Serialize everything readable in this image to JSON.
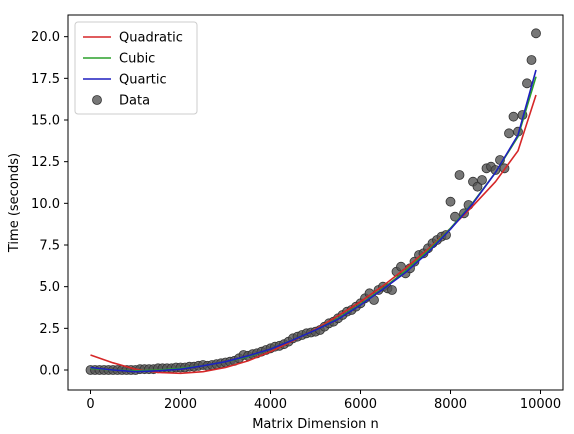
{
  "chart_data": {
    "type": "scatter",
    "title": "",
    "xlabel": "Matrix Dimension n",
    "ylabel": "Time (seconds)",
    "xlim": [
      -500,
      10500
    ],
    "ylim": [
      -1.2,
      21.3
    ],
    "xticks": [
      0,
      2000,
      4000,
      6000,
      8000,
      10000
    ],
    "xtick_labels": [
      "0",
      "2000",
      "4000",
      "6000",
      "8000",
      "10000"
    ],
    "yticks": [
      0.0,
      2.5,
      5.0,
      7.5,
      10.0,
      12.5,
      15.0,
      17.5,
      20.0
    ],
    "ytick_labels": [
      "0.0",
      "2.5",
      "5.0",
      "7.5",
      "10.0",
      "12.5",
      "15.0",
      "17.5",
      "20.0"
    ],
    "grid": false,
    "legend_position": "upper-left",
    "legend": [
      {
        "label": "Quadratic",
        "kind": "line",
        "color": "#d62728"
      },
      {
        "label": "Cubic",
        "kind": "line",
        "color": "#2ca02c"
      },
      {
        "label": "Quartic",
        "kind": "line",
        "color": "#1f1fbf"
      },
      {
        "label": "Data",
        "kind": "marker",
        "color": "#555555"
      }
    ],
    "fits": [
      {
        "name": "Quadratic",
        "color": "#d62728",
        "x": [
          0,
          500,
          1000,
          1500,
          2000,
          2500,
          3000,
          3500,
          4000,
          4500,
          5000,
          5500,
          6000,
          6500,
          7000,
          7500,
          8000,
          8500,
          9000,
          9500,
          9900
        ],
        "y": [
          0.9,
          0.43,
          0.05,
          -0.15,
          -0.2,
          -0.1,
          0.15,
          0.55,
          1.1,
          1.75,
          2.45,
          3.25,
          4.1,
          5.05,
          6.1,
          7.25,
          8.5,
          9.85,
          11.3,
          13.15,
          16.5
        ]
      },
      {
        "name": "Cubic",
        "color": "#2ca02c",
        "x": [
          0,
          500,
          1000,
          1500,
          2000,
          2500,
          3000,
          3500,
          4000,
          4500,
          5000,
          5500,
          6000,
          6500,
          7000,
          7500,
          8000,
          8500,
          9000,
          9500,
          9900
        ],
        "y": [
          0.1,
          0.0,
          -0.05,
          0.0,
          0.1,
          0.25,
          0.5,
          0.8,
          1.25,
          1.8,
          2.4,
          3.1,
          3.95,
          4.9,
          5.95,
          7.15,
          8.5,
          10.05,
          11.85,
          14.0,
          17.6
        ]
      },
      {
        "name": "Quartic",
        "color": "#1f1fbf",
        "x": [
          0,
          500,
          1000,
          1500,
          2000,
          2500,
          3000,
          3500,
          4000,
          4500,
          5000,
          5500,
          6000,
          6500,
          7000,
          7500,
          8000,
          8500,
          9000,
          9500,
          9900
        ],
        "y": [
          0.15,
          0.0,
          -0.1,
          -0.05,
          0.05,
          0.25,
          0.5,
          0.85,
          1.25,
          1.8,
          2.4,
          3.05,
          3.9,
          4.85,
          5.85,
          7.05,
          8.45,
          10.0,
          11.85,
          14.1,
          18.0
        ]
      }
    ],
    "series": [
      {
        "name": "Data",
        "color": "#555555",
        "x": [
          0,
          100,
          200,
          300,
          400,
          500,
          600,
          700,
          800,
          900,
          1000,
          1100,
          1200,
          1300,
          1400,
          1500,
          1600,
          1700,
          1800,
          1900,
          2000,
          2100,
          2200,
          2300,
          2400,
          2500,
          2600,
          2700,
          2800,
          2900,
          3000,
          3100,
          3200,
          3300,
          3400,
          3500,
          3600,
          3700,
          3800,
          3900,
          4000,
          4100,
          4200,
          4300,
          4400,
          4500,
          4600,
          4700,
          4800,
          4900,
          5000,
          5100,
          5200,
          5300,
          5400,
          5500,
          5600,
          5700,
          5800,
          5900,
          6000,
          6100,
          6200,
          6300,
          6400,
          6500,
          6600,
          6700,
          6800,
          6900,
          7000,
          7100,
          7200,
          7300,
          7400,
          7500,
          7600,
          7700,
          7800,
          7900,
          8000,
          8100,
          8200,
          8300,
          8400,
          8500,
          8600,
          8700,
          8800,
          8900,
          9000,
          9100,
          9200,
          9300,
          9400,
          9500,
          9600,
          9700,
          9800,
          9900
        ],
        "y": [
          0.0,
          0.0,
          0.0,
          0.0,
          0.0,
          0.0,
          0.0,
          0.0,
          0.0,
          0.0,
          0.0,
          0.05,
          0.05,
          0.05,
          0.05,
          0.1,
          0.1,
          0.1,
          0.1,
          0.15,
          0.15,
          0.15,
          0.2,
          0.2,
          0.25,
          0.3,
          0.25,
          0.3,
          0.35,
          0.4,
          0.45,
          0.5,
          0.55,
          0.7,
          0.9,
          0.85,
          0.95,
          1.0,
          1.1,
          1.2,
          1.3,
          1.4,
          1.45,
          1.55,
          1.7,
          1.9,
          2.0,
          2.1,
          2.2,
          2.25,
          2.3,
          2.4,
          2.6,
          2.8,
          2.9,
          3.1,
          3.3,
          3.5,
          3.6,
          3.8,
          4.0,
          4.3,
          4.6,
          4.2,
          4.8,
          5.0,
          4.9,
          4.8,
          5.9,
          6.2,
          5.8,
          6.1,
          6.5,
          6.9,
          7.0,
          7.3,
          7.6,
          7.8,
          8.0,
          8.1,
          10.1,
          9.2,
          11.7,
          9.4,
          9.9,
          11.3,
          11.0,
          11.4,
          12.1,
          12.2,
          12.0,
          12.6,
          12.1,
          14.2,
          15.2,
          14.3,
          15.3,
          17.2,
          18.6,
          20.2
        ]
      }
    ]
  }
}
